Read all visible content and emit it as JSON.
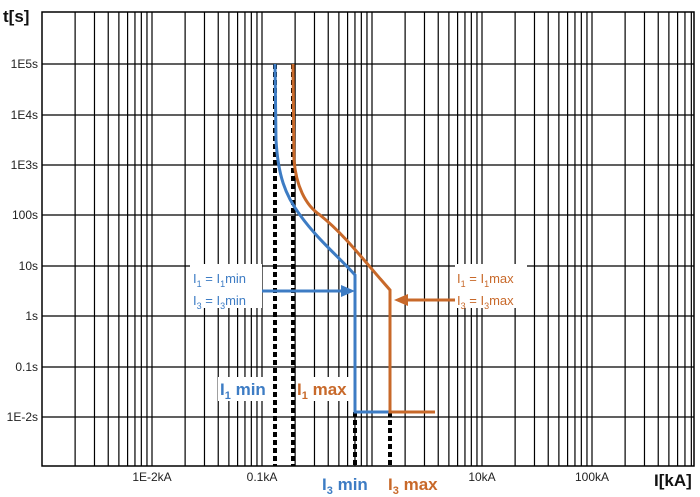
{
  "chart_data": {
    "type": "line",
    "title": "",
    "xlabel": "I[kA]",
    "ylabel": "t[s]",
    "x_scale": "log",
    "y_scale": "log",
    "xlim": [
      0.001,
      1000
    ],
    "ylim": [
      0.001,
      1000000
    ],
    "grid": true,
    "x_tick_labels": [
      "1E-2kA",
      "0.1kA",
      "10kA",
      "100kA"
    ],
    "y_tick_labels": [
      "1E5s",
      "1E4s",
      "1E3s",
      "100s",
      "10s",
      "1s",
      "0.1s",
      "1E-2s"
    ],
    "series": [
      {
        "name": "I1 min / I3 min curve",
        "color": "#3d7cc4",
        "points": [
          [
            0.125,
            100000
          ],
          [
            0.128,
            1000
          ],
          [
            0.16,
            200
          ],
          [
            0.3,
            30
          ],
          [
            0.65,
            5
          ],
          [
            0.65,
            0.011
          ],
          [
            1.45,
            0.011
          ]
        ]
      },
      {
        "name": "I1 max / I3 max curve",
        "color": "#c8692a",
        "points": [
          [
            0.18,
            100000
          ],
          [
            0.18,
            1000
          ],
          [
            0.24,
            200
          ],
          [
            0.5,
            30
          ],
          [
            1.45,
            2.7
          ],
          [
            1.45,
            0.011
          ],
          [
            4,
            0.011
          ]
        ]
      }
    ],
    "reference_lines": [
      {
        "label": "I1 min",
        "x": 0.125,
        "style": "dotted"
      },
      {
        "label": "I1 max",
        "x": 0.18,
        "style": "dotted"
      },
      {
        "label": "I3 min",
        "x": 0.65,
        "style": "dotted"
      },
      {
        "label": "I3 max",
        "x": 1.45,
        "style": "dotted"
      }
    ],
    "annotations": [
      {
        "text": "I1 = I1min / I3 = I3min",
        "color": "#3d7cc4"
      },
      {
        "text": "I1 = I1max / I3 = I3max",
        "color": "#c8692a"
      }
    ]
  },
  "labels": {
    "y_axis_title": "t[s]",
    "x_axis_title": "I[kA]",
    "y_ticks": [
      "1E5s",
      "1E4s",
      "1E3s",
      "100s",
      "10s",
      "1s",
      "0.1s",
      "1E-2s"
    ],
    "x_ticks": [
      "1E-2kA",
      "0.1kA",
      "10kA",
      "100kA"
    ],
    "blue_ann_line1_a": "I",
    "blue_ann_line1_sub1": "1",
    "blue_ann_line1_b": " = I",
    "blue_ann_line1_sub2": "1",
    "blue_ann_line1_c": "min",
    "blue_ann_line2_a": "I",
    "blue_ann_line2_sub1": "3",
    "blue_ann_line2_b": " = I",
    "blue_ann_line2_sub2": "3",
    "blue_ann_line2_c": "min",
    "orange_ann_line1_a": "I",
    "orange_ann_line1_sub1": "1",
    "orange_ann_line1_b": " = I",
    "orange_ann_line1_sub2": "1",
    "orange_ann_line1_c": "max",
    "orange_ann_line2_a": "I",
    "orange_ann_line2_sub1": "3",
    "orange_ann_line2_b": " = I",
    "orange_ann_line2_sub2": "3",
    "orange_ann_line2_c": "max",
    "i1min_a": "I",
    "i1min_sub": "1",
    "i1min_b": " min",
    "i1max_a": "I",
    "i1max_sub": "1",
    "i1max_b": " max",
    "i3min_a": "I",
    "i3min_sub": "3",
    "i3min_b": " min",
    "i3max_a": "I",
    "i3max_sub": "3",
    "i3max_b": " max"
  },
  "colors": {
    "blue": "#3d7cc4",
    "orange": "#c8692a",
    "grid": "#000000"
  }
}
